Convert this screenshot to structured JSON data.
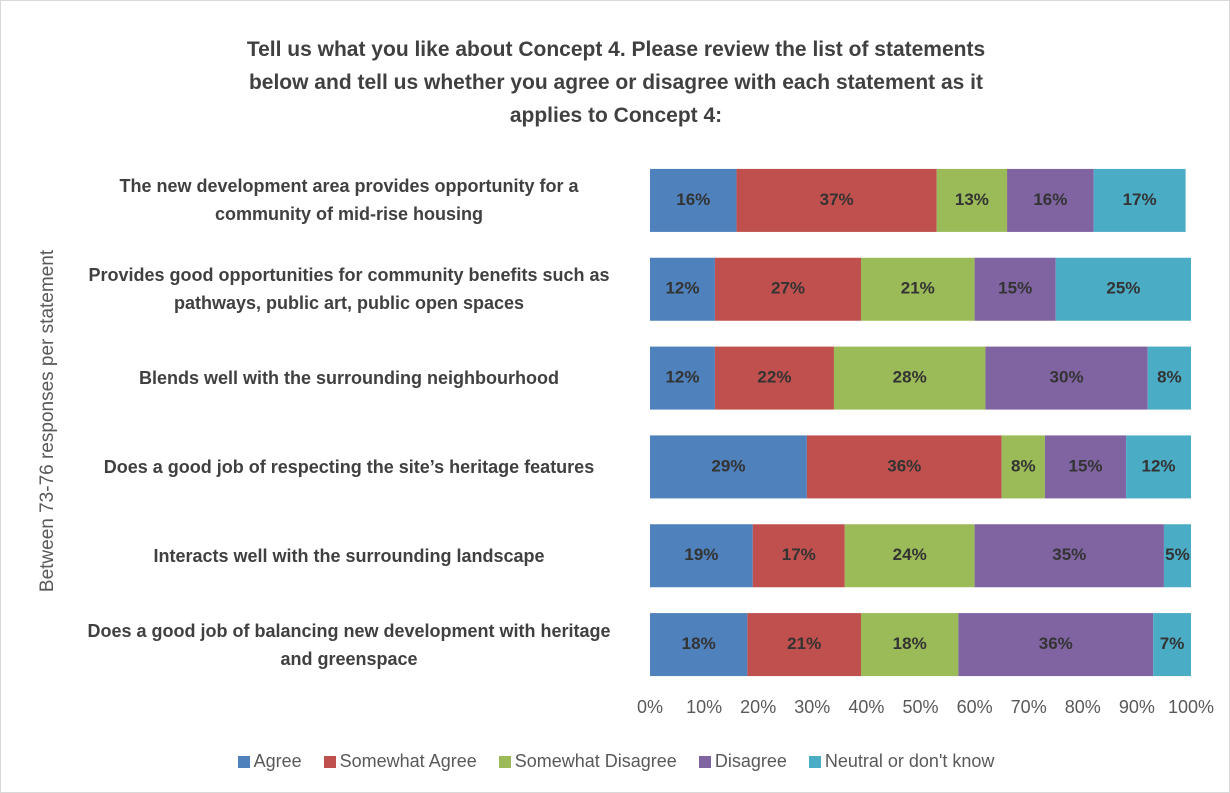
{
  "chart_data": {
    "type": "stacked-barh",
    "title": "Tell us what you like about Concept 4. Please review the list of statements below and tell us whether you agree or disagree with each statement as it applies to Concept 4:",
    "y_label": "Between 73-76 responses per statement",
    "categories": [
      "The new development area provides opportunity for a community of mid-rise housing",
      "Provides good opportunities for community benefits such as pathways, public art, public open spaces",
      "Blends well with the surrounding neighbourhood",
      "Does a good job of respecting the site’s heritage features",
      "Interacts well with the surrounding landscape",
      "Does a good job of balancing new development with heritage and greenspace"
    ],
    "series": [
      {
        "name": "Agree",
        "color": "#4f81bd",
        "values": [
          16,
          12,
          12,
          29,
          19,
          18
        ],
        "value_labels": [
          "16%",
          "12%",
          "12%",
          "29%",
          "19%",
          "18%"
        ]
      },
      {
        "name": "Somewhat Agree",
        "color": "#c0504d",
        "values": [
          37,
          27,
          22,
          36,
          17,
          21
        ],
        "value_labels": [
          "37%",
          "27%",
          "22%",
          "36%",
          "17%",
          "21%"
        ]
      },
      {
        "name": "Somewhat Disagree",
        "color": "#9bbb59",
        "values": [
          13,
          21,
          28,
          8,
          24,
          18
        ],
        "value_labels": [
          "13%",
          "21%",
          "28%",
          "8%",
          "24%",
          "18%"
        ]
      },
      {
        "name": "Disagree",
        "color": "#8064a2",
        "values": [
          16,
          15,
          30,
          15,
          35,
          36
        ],
        "value_labels": [
          "16%",
          "15%",
          "30%",
          "15%",
          "35%",
          "36%"
        ]
      },
      {
        "name": "Neutral or don't know",
        "color": "#4bacc6",
        "values": [
          17,
          25,
          8,
          12,
          5,
          7
        ],
        "value_labels": [
          "17%",
          "25%",
          "8%",
          "12%",
          "5%",
          "7%"
        ]
      }
    ],
    "xlim": [
      0,
      100
    ],
    "xticks": [
      {
        "value": 0,
        "label": "0%"
      },
      {
        "value": 10,
        "label": "10%"
      },
      {
        "value": 20,
        "label": "20%"
      },
      {
        "value": 30,
        "label": "30%"
      },
      {
        "value": 40,
        "label": "40%"
      },
      {
        "value": 50,
        "label": "50%"
      },
      {
        "value": 60,
        "label": "60%"
      },
      {
        "value": 70,
        "label": "70%"
      },
      {
        "value": 80,
        "label": "80%"
      },
      {
        "value": 90,
        "label": "90%"
      },
      {
        "value": 100,
        "label": "100%"
      }
    ],
    "legend": "bottom"
  }
}
